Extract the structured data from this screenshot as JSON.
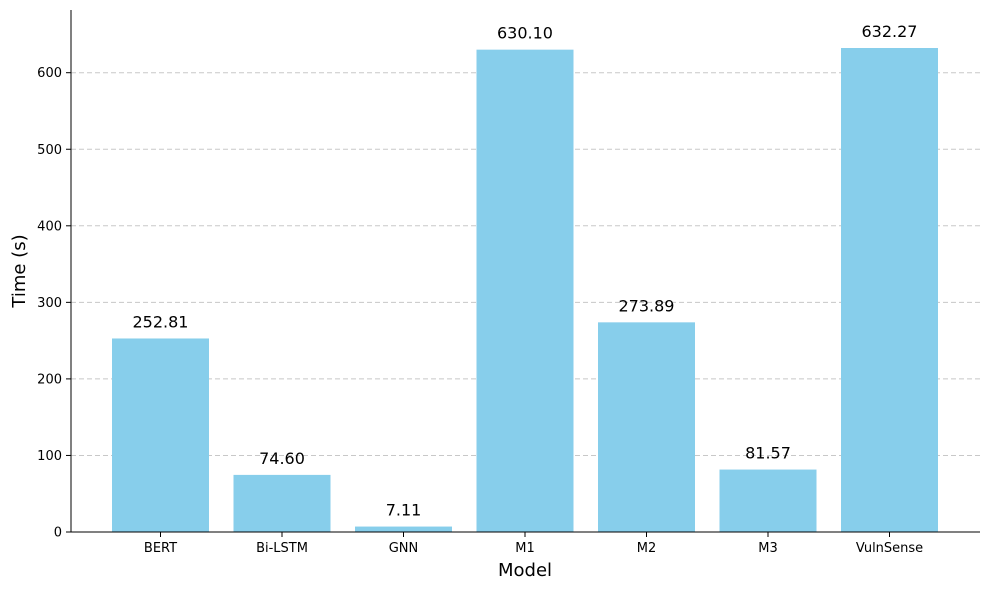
{
  "chart_data": {
    "type": "bar",
    "categories": [
      "BERT",
      "Bi-LSTM",
      "GNN",
      "M1",
      "M2",
      "M3",
      "VulnSense"
    ],
    "values": [
      252.81,
      74.6,
      7.11,
      630.1,
      273.89,
      81.57,
      632.27
    ],
    "value_labels": [
      "252.81",
      "74.60",
      "7.11",
      "630.10",
      "273.89",
      "81.57",
      "632.27"
    ],
    "xlabel": "Model",
    "ylabel": "Time (s)",
    "ylim": [
      0,
      680
    ],
    "yticks": [
      0,
      100,
      200,
      300,
      400,
      500,
      600
    ],
    "grid": "horizontal dashed",
    "bar_color": "#87ceeb"
  }
}
